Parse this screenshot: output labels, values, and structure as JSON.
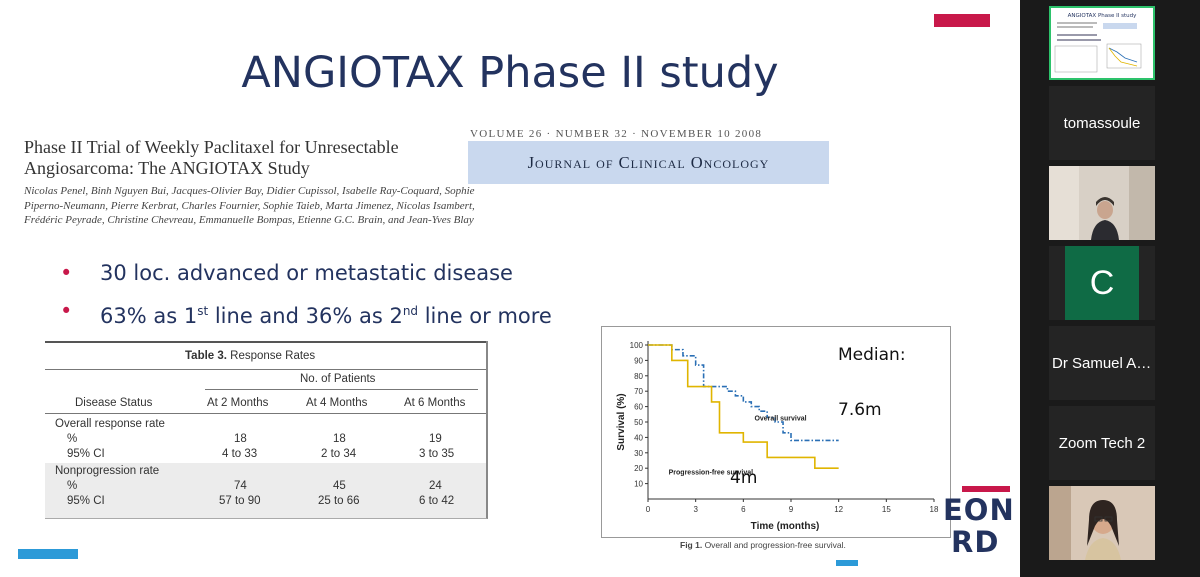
{
  "slide": {
    "title": "ANGIOTAX Phase II study",
    "paper": {
      "title": "Phase II Trial of Weekly Paclitaxel for Unresectable Angiosarcoma: The ANGIOTAX Study",
      "authors": "Nicolas Penel, Binh Nguyen Bui, Jacques-Olivier Bay, Didier Cupissol, Isabelle Ray-Coquard, Sophie Piperno-Neumann, Pierre Kerbrat, Charles Fournier, Sophie Taieb, Marta Jimenez, Nicolas Isambert, Frédéric Peyrade, Christine Chevreau, Emmanuelle Bompas, Etienne G.C. Brain, and Jean-Yves Blay",
      "journal_volume": "VOLUME 26 · NUMBER 32 · NOVEMBER 10 2008",
      "journal_name": "Journal of Clinical Oncology"
    },
    "bullets": [
      {
        "pre": "30 loc. advanced or metastatic disease"
      },
      {
        "pre": "63% as 1",
        "sup1": "st",
        "mid": " line and 36% as 2",
        "sup2": "nd",
        "post": " line or more"
      }
    ],
    "table": {
      "caption_bold": "Table 3.",
      "caption_rest": " Response Rates",
      "group_header": "No. of Patients",
      "headers": [
        "Disease Status",
        "At 2 Months",
        "At 4 Months",
        "At 6 Months"
      ],
      "section1": "Overall response rate",
      "section2": "Nonprogression rate",
      "rows": [
        [
          "%",
          "18",
          "18",
          "19"
        ],
        [
          "95% CI",
          "4 to 33",
          "2 to 34",
          "3 to 35"
        ],
        [
          "%",
          "74",
          "45",
          "24"
        ],
        [
          "95% CI",
          "57 to 90",
          "25 to 66",
          "6 to 42"
        ]
      ]
    },
    "figure": {
      "caption_bold": "Fig 1.",
      "caption_rest": " Overall and progression-free survival.",
      "annotation_median": "Median:",
      "annotation_os": "7.6m",
      "annotation_pfs": "4m"
    },
    "logo_text_1": "EON",
    "logo_text_2": "RD",
    "colors": {
      "accent": "#c8184a",
      "title": "#23335f",
      "blue": "#2c9ad8",
      "os_line": "#2a6fb5",
      "pfs_line": "#e0b500"
    }
  },
  "chart_data": {
    "type": "line",
    "title": "",
    "xlabel": "Time (months)",
    "ylabel": "Survival (%)",
    "xlim": [
      0,
      18
    ],
    "ylim": [
      0,
      100
    ],
    "x_ticks": [
      0,
      3,
      6,
      9,
      12,
      15,
      18
    ],
    "y_ticks": [
      10,
      20,
      30,
      40,
      50,
      60,
      70,
      80,
      90,
      100
    ],
    "series": [
      {
        "name": "Overall survival",
        "style": "dash-dot",
        "color": "#2a6fb5",
        "x": [
          0,
          1.5,
          1.5,
          2.2,
          2.2,
          3,
          3,
          3.5,
          3.5,
          5,
          5,
          5.5,
          5.5,
          6,
          6,
          6.5,
          6.5,
          7,
          7,
          7.5,
          7.5,
          8,
          8,
          8.5,
          8.5,
          9,
          9,
          12
        ],
        "y": [
          100,
          100,
          97,
          97,
          93,
          93,
          87,
          87,
          73,
          73,
          70,
          70,
          67,
          67,
          63,
          63,
          60,
          60,
          57,
          57,
          53,
          53,
          50,
          50,
          43,
          43,
          38,
          38
        ]
      },
      {
        "name": "Progression-free survival",
        "style": "solid",
        "color": "#e0b500",
        "x": [
          0,
          1.5,
          1.5,
          2.5,
          2.5,
          4,
          4,
          4.5,
          4.5,
          6,
          6,
          7.5,
          7.5,
          10.5,
          10.5,
          12
        ],
        "y": [
          100,
          100,
          90,
          90,
          73,
          73,
          63,
          63,
          43,
          43,
          37,
          37,
          27,
          27,
          20,
          20
        ]
      }
    ],
    "annotations": [
      "Overall survival",
      "Progression-free survival"
    ]
  },
  "participants": [
    {
      "name": "",
      "type": "slide-thumbnail",
      "thumb_title": "ANGIOTAX Phase II study"
    },
    {
      "name": "tomassoule",
      "type": "name"
    },
    {
      "name": "",
      "type": "video"
    },
    {
      "name": "C",
      "type": "initial",
      "color": "#0f6b45"
    },
    {
      "name": "Dr Samuel Ag...",
      "type": "name"
    },
    {
      "name": "Zoom Tech 2",
      "type": "name"
    },
    {
      "name": "",
      "type": "video"
    }
  ]
}
